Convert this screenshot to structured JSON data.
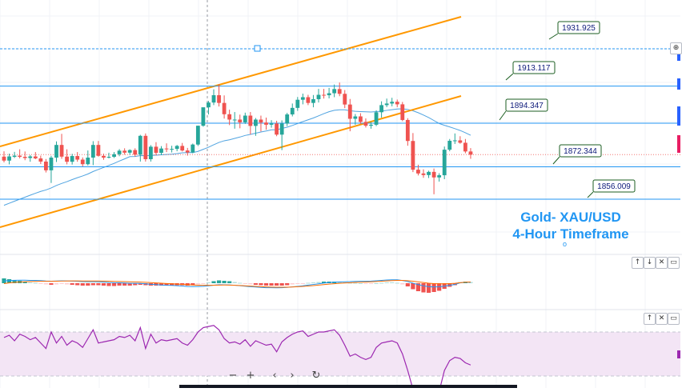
{
  "chart_data": {
    "type": "candlestick",
    "title": "Gold- XAU/USD",
    "subtitle": "4-Hour Timeframe",
    "price_range": [
      1842,
      1942
    ],
    "candles": [
      [
        1877.5,
        1880.2,
        1874.6,
        1875.5
      ],
      [
        1875.5,
        1879.0,
        1873.6,
        1877.6
      ],
      [
        1877.4,
        1879.9,
        1876.8,
        1878.0
      ],
      [
        1878.0,
        1881.2,
        1876.6,
        1877.4
      ],
      [
        1877.4,
        1880.1,
        1875.7,
        1876.8
      ],
      [
        1876.8,
        1878.3,
        1874.9,
        1877.6
      ],
      [
        1877.6,
        1879.8,
        1876.2,
        1876.6
      ],
      [
        1876.6,
        1878.0,
        1873.8,
        1875.0
      ],
      [
        1875.0,
        1876.3,
        1869.5,
        1870.6
      ],
      [
        1870.6,
        1877.9,
        1864.2,
        1877.0
      ],
      [
        1877.0,
        1885.2,
        1874.8,
        1883.4
      ],
      [
        1883.4,
        1889.0,
        1876.4,
        1877.5
      ],
      [
        1877.5,
        1881.2,
        1873.6,
        1874.9
      ],
      [
        1874.9,
        1878.9,
        1873.5,
        1877.8
      ],
      [
        1877.8,
        1879.8,
        1874.9,
        1876.0
      ],
      [
        1876.0,
        1877.1,
        1872.6,
        1873.7
      ],
      [
        1873.7,
        1880.6,
        1873.0,
        1877.0
      ],
      [
        1877.0,
        1885.3,
        1873.2,
        1883.4
      ],
      [
        1883.4,
        1885.4,
        1877.5,
        1877.9
      ],
      [
        1877.9,
        1879.0,
        1875.9,
        1877.0
      ],
      [
        1877.0,
        1879.5,
        1876.6,
        1877.4
      ],
      [
        1877.4,
        1879.8,
        1876.8,
        1878.7
      ],
      [
        1878.7,
        1881.3,
        1877.7,
        1880.5
      ],
      [
        1880.5,
        1881.7,
        1878.5,
        1879.5
      ],
      [
        1879.5,
        1881.2,
        1878.4,
        1880.8
      ],
      [
        1880.8,
        1881.7,
        1877.5,
        1878.5
      ],
      [
        1878.5,
        1888.5,
        1875.0,
        1888.0
      ],
      [
        1888.0,
        1889.2,
        1875.0,
        1876.2
      ],
      [
        1876.2,
        1883.3,
        1875.0,
        1882.5
      ],
      [
        1882.5,
        1884.8,
        1878.2,
        1879.4
      ],
      [
        1879.4,
        1882.8,
        1878.2,
        1881.6
      ],
      [
        1881.6,
        1884.2,
        1879.8,
        1881.4
      ],
      [
        1881.4,
        1883.0,
        1879.6,
        1881.4
      ],
      [
        1881.4,
        1883.4,
        1880.2,
        1882.9
      ],
      [
        1882.9,
        1884.4,
        1880.1,
        1880.6
      ],
      [
        1880.6,
        1881.9,
        1878.0,
        1879.6
      ],
      [
        1879.6,
        1884.1,
        1879.2,
        1883.6
      ],
      [
        1883.6,
        1893.1,
        1882.9,
        1893.1
      ],
      [
        1893.1,
        1902.1,
        1892.6,
        1902.4
      ],
      [
        1902.4,
        1905.6,
        1898.8,
        1904.8
      ],
      [
        1904.8,
        1911.5,
        1903.5,
        1908.5
      ],
      [
        1908.5,
        1914.1,
        1902.8,
        1904.6
      ],
      [
        1904.6,
        1908.4,
        1896.7,
        1898.9
      ],
      [
        1898.9,
        1901.2,
        1893.4,
        1896.2
      ],
      [
        1896.2,
        1900.0,
        1891.6,
        1896.2
      ],
      [
        1896.2,
        1898.7,
        1891.8,
        1894.8
      ],
      [
        1894.8,
        1899.7,
        1894.0,
        1898.2
      ],
      [
        1898.2,
        1900.0,
        1888.7,
        1893.0
      ],
      [
        1893.0,
        1897.0,
        1888.0,
        1896.2
      ],
      [
        1896.2,
        1898.2,
        1890.2,
        1894.7
      ],
      [
        1894.7,
        1897.2,
        1891.1,
        1893.6
      ],
      [
        1893.6,
        1895.9,
        1892.1,
        1894.2
      ],
      [
        1894.2,
        1895.6,
        1887.8,
        1888.6
      ],
      [
        1888.6,
        1895.8,
        1880.8,
        1894.2
      ],
      [
        1894.2,
        1899.6,
        1892.9,
        1898.8
      ],
      [
        1898.8,
        1904.3,
        1897.8,
        1902.1
      ],
      [
        1902.1,
        1907.6,
        1900.6,
        1906.2
      ],
      [
        1906.2,
        1909.3,
        1903.9,
        1907.5
      ],
      [
        1907.5,
        1908.7,
        1903.5,
        1904.6
      ],
      [
        1904.6,
        1908.6,
        1902.4,
        1906.5
      ],
      [
        1906.5,
        1911.7,
        1904.8,
        1908.7
      ],
      [
        1908.7,
        1911.7,
        1906.8,
        1908.5
      ],
      [
        1908.5,
        1912.2,
        1906.9,
        1909.5
      ],
      [
        1909.5,
        1913.9,
        1907.5,
        1911.6
      ],
      [
        1911.6,
        1914.9,
        1908.0,
        1909.2
      ],
      [
        1909.2,
        1911.1,
        1902.0,
        1903.8
      ],
      [
        1903.8,
        1906.6,
        1890.3,
        1896.6
      ],
      [
        1896.6,
        1899.0,
        1893.6,
        1897.8
      ],
      [
        1897.8,
        1899.4,
        1894.0,
        1895.0
      ],
      [
        1895.0,
        1896.8,
        1892.2,
        1893.1
      ],
      [
        1893.1,
        1895.0,
        1891.6,
        1893.6
      ],
      [
        1893.6,
        1900.9,
        1892.9,
        1899.9
      ],
      [
        1899.9,
        1905.4,
        1897.2,
        1903.5
      ],
      [
        1903.5,
        1906.8,
        1902.5,
        1904.3
      ],
      [
        1904.3,
        1907.2,
        1902.9,
        1905.2
      ],
      [
        1905.2,
        1906.3,
        1902.5,
        1903.9
      ],
      [
        1903.9,
        1905.1,
        1895.4,
        1896.0
      ],
      [
        1896.0,
        1896.9,
        1883.0,
        1885.4
      ],
      [
        1885.4,
        1889.4,
        1869.7,
        1870.9
      ],
      [
        1870.9,
        1873.4,
        1868.0,
        1869.0
      ],
      [
        1869.0,
        1871.1,
        1866.8,
        1868.2
      ],
      [
        1868.2,
        1870.4,
        1866.7,
        1869.8
      ],
      [
        1869.8,
        1871.5,
        1858.5,
        1867.0
      ],
      [
        1867.0,
        1869.1,
        1864.9,
        1868.1
      ],
      [
        1868.1,
        1882.6,
        1866.1,
        1881.0
      ],
      [
        1881.0,
        1886.4,
        1880.2,
        1885.5
      ],
      [
        1885.5,
        1889.2,
        1883.9,
        1885.7
      ],
      [
        1885.7,
        1887.8,
        1884.0,
        1884.5
      ],
      [
        1884.5,
        1886.4,
        1879.2,
        1880.1
      ],
      [
        1880.1,
        1881.8,
        1876.4,
        1878.5
      ]
    ],
    "support_resistance": [
      1931.925,
      1913.117,
      1894.347,
      1872.344,
      1856.009
    ],
    "last_price": 1878.5,
    "panes": [
      {
        "name": "price",
        "type": "candlestick"
      },
      {
        "name": "macd",
        "type": "histogram-and-lines"
      },
      {
        "name": "rsi",
        "type": "line"
      }
    ],
    "macd_histogram": [
      1.2,
      1.0,
      0.8,
      0.6,
      0.4,
      0.2,
      0.1,
      -0.1,
      -0.3,
      -0.4,
      -0.3,
      -0.2,
      -0.3,
      -0.4,
      -0.5,
      -0.6,
      -0.6,
      -0.5,
      -0.5,
      -0.6,
      -0.7,
      -0.7,
      -0.6,
      -0.6,
      -0.6,
      -0.5,
      -0.4,
      -0.5,
      -0.6,
      -0.6,
      -0.6,
      -0.6,
      -0.5,
      -0.5,
      -0.5,
      -0.6,
      -0.5,
      -0.3,
      -0.1,
      0.2,
      0.5,
      0.7,
      0.6,
      0.5,
      0.3,
      0.1,
      -0.1,
      -0.3,
      -0.4,
      -0.5,
      -0.6,
      -0.6,
      -0.6,
      -0.6,
      -0.5,
      -0.3,
      -0.2,
      -0.1,
      0.1,
      0.2,
      0.3,
      0.4,
      0.4,
      0.4,
      0.3,
      0.2,
      0.1,
      0.1,
      0.0,
      -0.1,
      -0.1,
      0.0,
      0.1,
      0.2,
      0.2,
      0.1,
      -0.3,
      -0.8,
      -1.5,
      -2.0,
      -2.3,
      -2.4,
      -2.2,
      -1.9,
      -1.4,
      -0.9,
      -0.5,
      0.3,
      0.4,
      0.3
    ],
    "rsi": [
      65,
      67,
      62,
      68,
      66,
      63,
      65,
      60,
      55,
      70,
      60,
      66,
      58,
      62,
      60,
      56,
      64,
      72,
      60,
      61,
      62,
      63,
      66,
      65,
      67,
      62,
      74,
      55,
      68,
      60,
      63,
      62,
      63,
      64,
      60,
      58,
      63,
      70,
      74,
      75,
      76,
      72,
      64,
      60,
      61,
      59,
      63,
      57,
      62,
      60,
      58,
      59,
      52,
      61,
      65,
      68,
      70,
      71,
      66,
      68,
      70,
      70,
      71,
      72,
      67,
      58,
      48,
      50,
      47,
      45,
      47,
      56,
      60,
      61,
      62,
      60,
      50,
      35,
      18,
      17,
      17,
      17,
      16,
      16,
      35,
      44,
      47,
      46,
      42,
      40
    ]
  },
  "price_labels": {
    "l1931": "1931.925",
    "l1913": "1913.117",
    "l1894": "1894.347",
    "l1872": "1872.344",
    "l1856": "1856.009"
  },
  "annotation": {
    "title": "Gold- XAU/USD",
    "subtitle": "4-Hour Timeframe",
    "marker_glyph": "o"
  },
  "pane_controls": {
    "up": "↑",
    "down": "↓",
    "close": "✕",
    "maximize": "▭"
  },
  "nav_controls": {
    "zoom_out": "−",
    "zoom_in": "+",
    "scroll_left": "‹",
    "scroll_right": "›",
    "reset": "↻"
  },
  "price_scale_button": "⊕",
  "colors": {
    "bull": "#26a69a",
    "bear": "#ef5350",
    "level": "#2196f3",
    "channel": "#ff9800",
    "annotation": "#2196f3",
    "rsi_line": "#9c27b0",
    "rsi_fill": "#f3e5f5",
    "macd_line": "#2196f3",
    "signal_line": "#ff6d00",
    "ma_line": "#4fa3e0",
    "label_border": "#1b5e20",
    "label_text": "#0d1a7a"
  }
}
